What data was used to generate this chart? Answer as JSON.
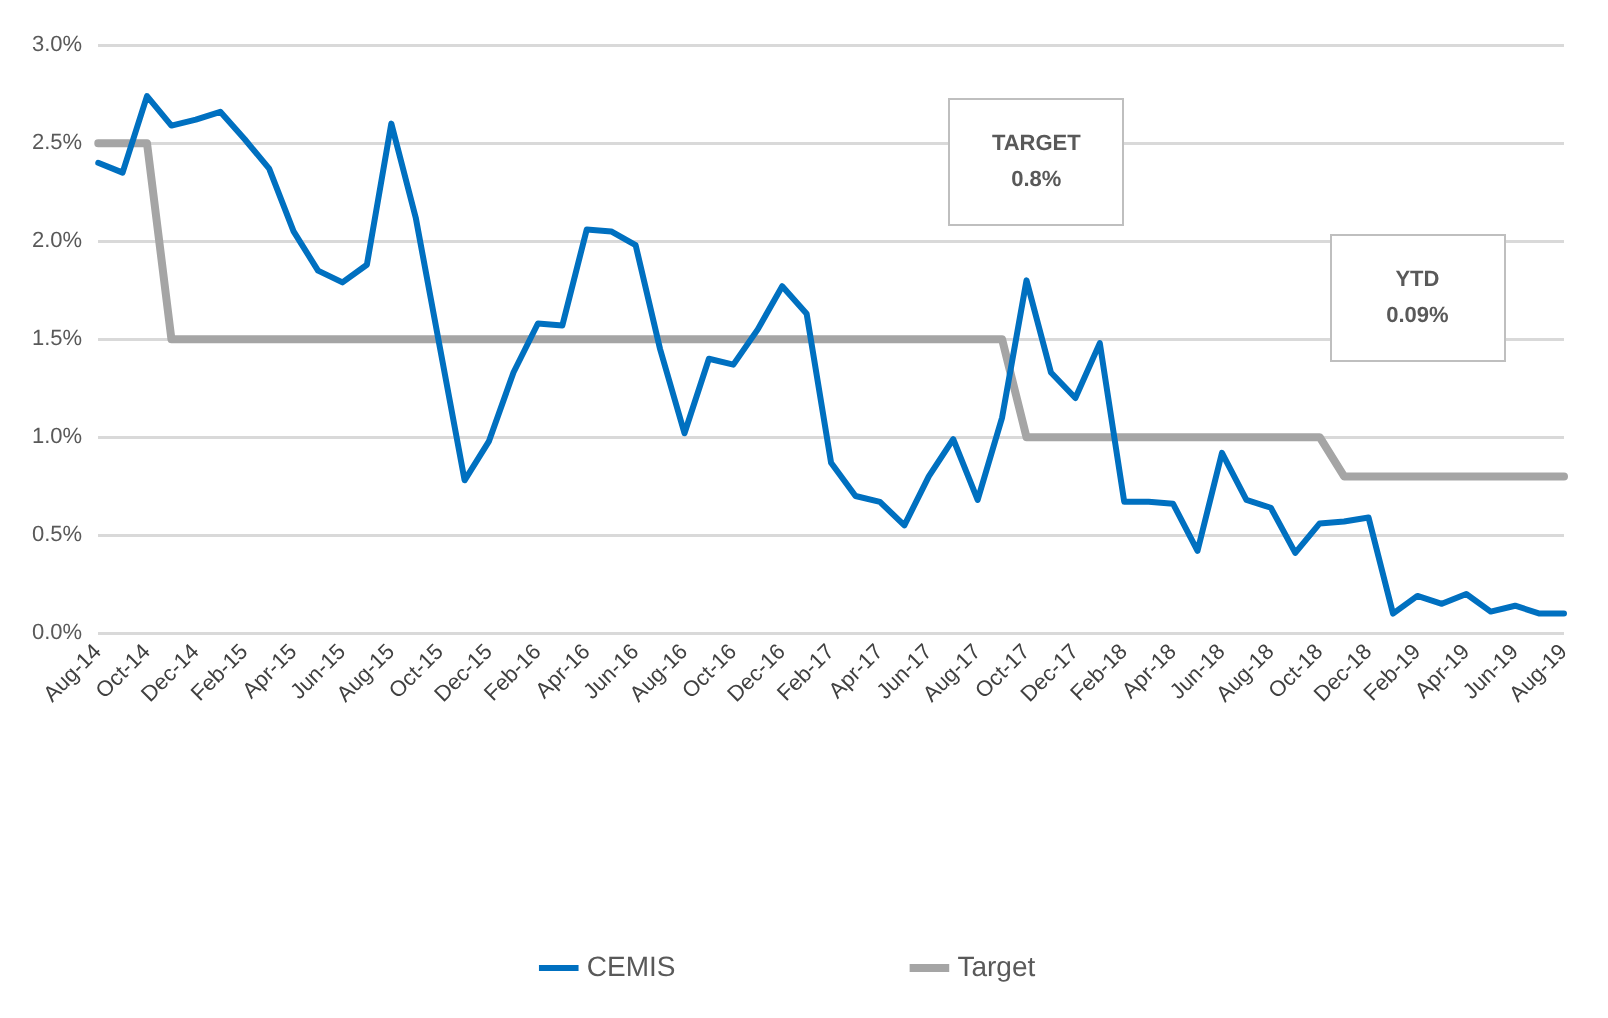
{
  "chart_data": {
    "type": "line",
    "categories": [
      "Aug-14",
      null,
      "Oct-14",
      null,
      "Dec-14",
      null,
      "Feb-15",
      null,
      "Apr-15",
      null,
      "Jun-15",
      null,
      "Aug-15",
      null,
      "Oct-15",
      null,
      "Dec-15",
      null,
      "Feb-16",
      null,
      "Apr-16",
      null,
      "Jun-16",
      null,
      "Aug-16",
      null,
      "Oct-16",
      null,
      "Dec-16",
      null,
      "Feb-17",
      null,
      "Apr-17",
      null,
      "Jun-17",
      null,
      "Aug-17",
      null,
      "Oct-17",
      null,
      "Dec-17",
      null,
      "Feb-18",
      null,
      "Apr-18",
      null,
      "Jun-18",
      null,
      "Aug-18",
      null,
      "Oct-18",
      null,
      "Dec-18",
      null,
      "Feb-19",
      null,
      "Apr-19",
      null,
      "Jun-19",
      null,
      "Aug-19"
    ],
    "series": [
      {
        "name": "CEMIS",
        "color": "#0070c0",
        "values": [
          2.4,
          2.35,
          2.74,
          2.59,
          2.62,
          2.66,
          2.52,
          2.37,
          2.05,
          1.85,
          1.79,
          1.88,
          2.6,
          2.12,
          1.45,
          0.78,
          0.98,
          1.33,
          1.58,
          1.57,
          2.06,
          2.05,
          1.98,
          1.45,
          1.02,
          1.4,
          1.37,
          1.55,
          1.77,
          1.63,
          0.87,
          0.7,
          0.67,
          0.55,
          0.8,
          0.99,
          0.68,
          1.1,
          1.8,
          1.33,
          1.2,
          1.48,
          0.67,
          0.67,
          0.66,
          0.42,
          0.92,
          0.68,
          0.64,
          0.41,
          0.56,
          0.57,
          0.59,
          0.1,
          0.19,
          0.15,
          0.2,
          0.11,
          0.14,
          0.1,
          0.1
        ]
      },
      {
        "name": "Target",
        "color": "#a5a5a5",
        "values": [
          2.5,
          2.5,
          2.5,
          1.5,
          1.5,
          1.5,
          1.5,
          1.5,
          1.5,
          1.5,
          1.5,
          1.5,
          1.5,
          1.5,
          1.5,
          1.5,
          1.5,
          1.5,
          1.5,
          1.5,
          1.5,
          1.5,
          1.5,
          1.5,
          1.5,
          1.5,
          1.5,
          1.5,
          1.5,
          1.5,
          1.5,
          1.5,
          1.5,
          1.5,
          1.5,
          1.5,
          1.5,
          1.5,
          1.0,
          1.0,
          1.0,
          1.0,
          1.0,
          1.0,
          1.0,
          1.0,
          1.0,
          1.0,
          1.0,
          1.0,
          1.0,
          0.8,
          0.8,
          0.8,
          0.8,
          0.8,
          0.8,
          0.8,
          0.8,
          0.8,
          0.8
        ]
      }
    ],
    "ylim": [
      0,
      3
    ],
    "yticks": [
      {
        "value": 0,
        "label": "0.0%"
      },
      {
        "value": 0.5,
        "label": "0.5%"
      },
      {
        "value": 1,
        "label": "1.0%"
      },
      {
        "value": 1.5,
        "label": "1.5%"
      },
      {
        "value": 2,
        "label": "2.0%"
      },
      {
        "value": 2.5,
        "label": "2.5%"
      },
      {
        "value": 3,
        "label": "3.0%"
      }
    ],
    "grid": "y",
    "legend": "bottom",
    "marker": "none",
    "line_style": "solid",
    "annotations": [
      "TARGET\n0.8%",
      "YTD\n0.09%"
    ]
  }
}
